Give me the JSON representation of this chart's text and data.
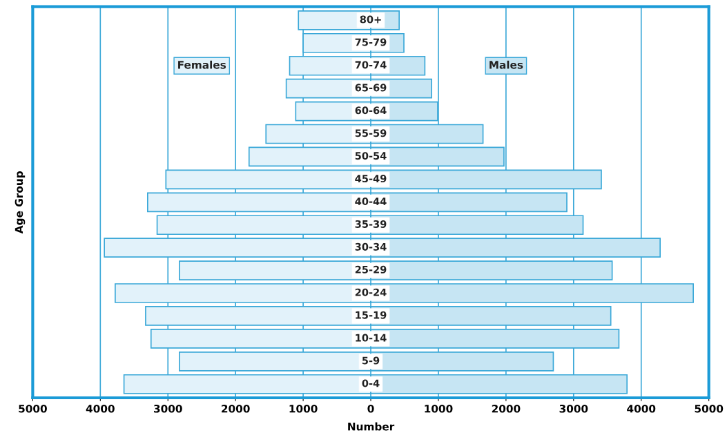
{
  "chart_data": {
    "type": "bar",
    "orientation": "horizontal",
    "xlabel": "Number",
    "ylabel": "Age Group",
    "categories": [
      "80+",
      "75-79",
      "70-74",
      "65-69",
      "60-64",
      "55-59",
      "50-54",
      "45-49",
      "40-44",
      "35-39",
      "30-34",
      "25-29",
      "20-24",
      "15-19",
      "10-14",
      "5-9",
      "0-4"
    ],
    "series": [
      {
        "name": "Females",
        "color": "#e2f2fa",
        "values": [
          -1070,
          -1000,
          -1200,
          -1250,
          -1110,
          -1550,
          -1800,
          -3030,
          -3300,
          -3160,
          -3940,
          -2830,
          -3780,
          -3330,
          -3250,
          -2830,
          -3650
        ]
      },
      {
        "name": "Males",
        "color": "#c6e5f3",
        "values": [
          420,
          490,
          800,
          900,
          990,
          1660,
          1970,
          3410,
          2900,
          3140,
          4280,
          3570,
          4770,
          3550,
          3670,
          2700,
          3790
        ]
      }
    ],
    "xlim": [
      -5000,
      5000
    ],
    "xticks": [
      {
        "value": -5000,
        "label": "5000"
      },
      {
        "value": -4000,
        "label": "4000"
      },
      {
        "value": -3000,
        "label": "3000"
      },
      {
        "value": -2000,
        "label": "2000"
      },
      {
        "value": -1000,
        "label": "1000"
      },
      0,
      1000,
      2000,
      3000,
      4000,
      5000
    ],
    "grid": "x",
    "legend": false,
    "stacked": true
  }
}
